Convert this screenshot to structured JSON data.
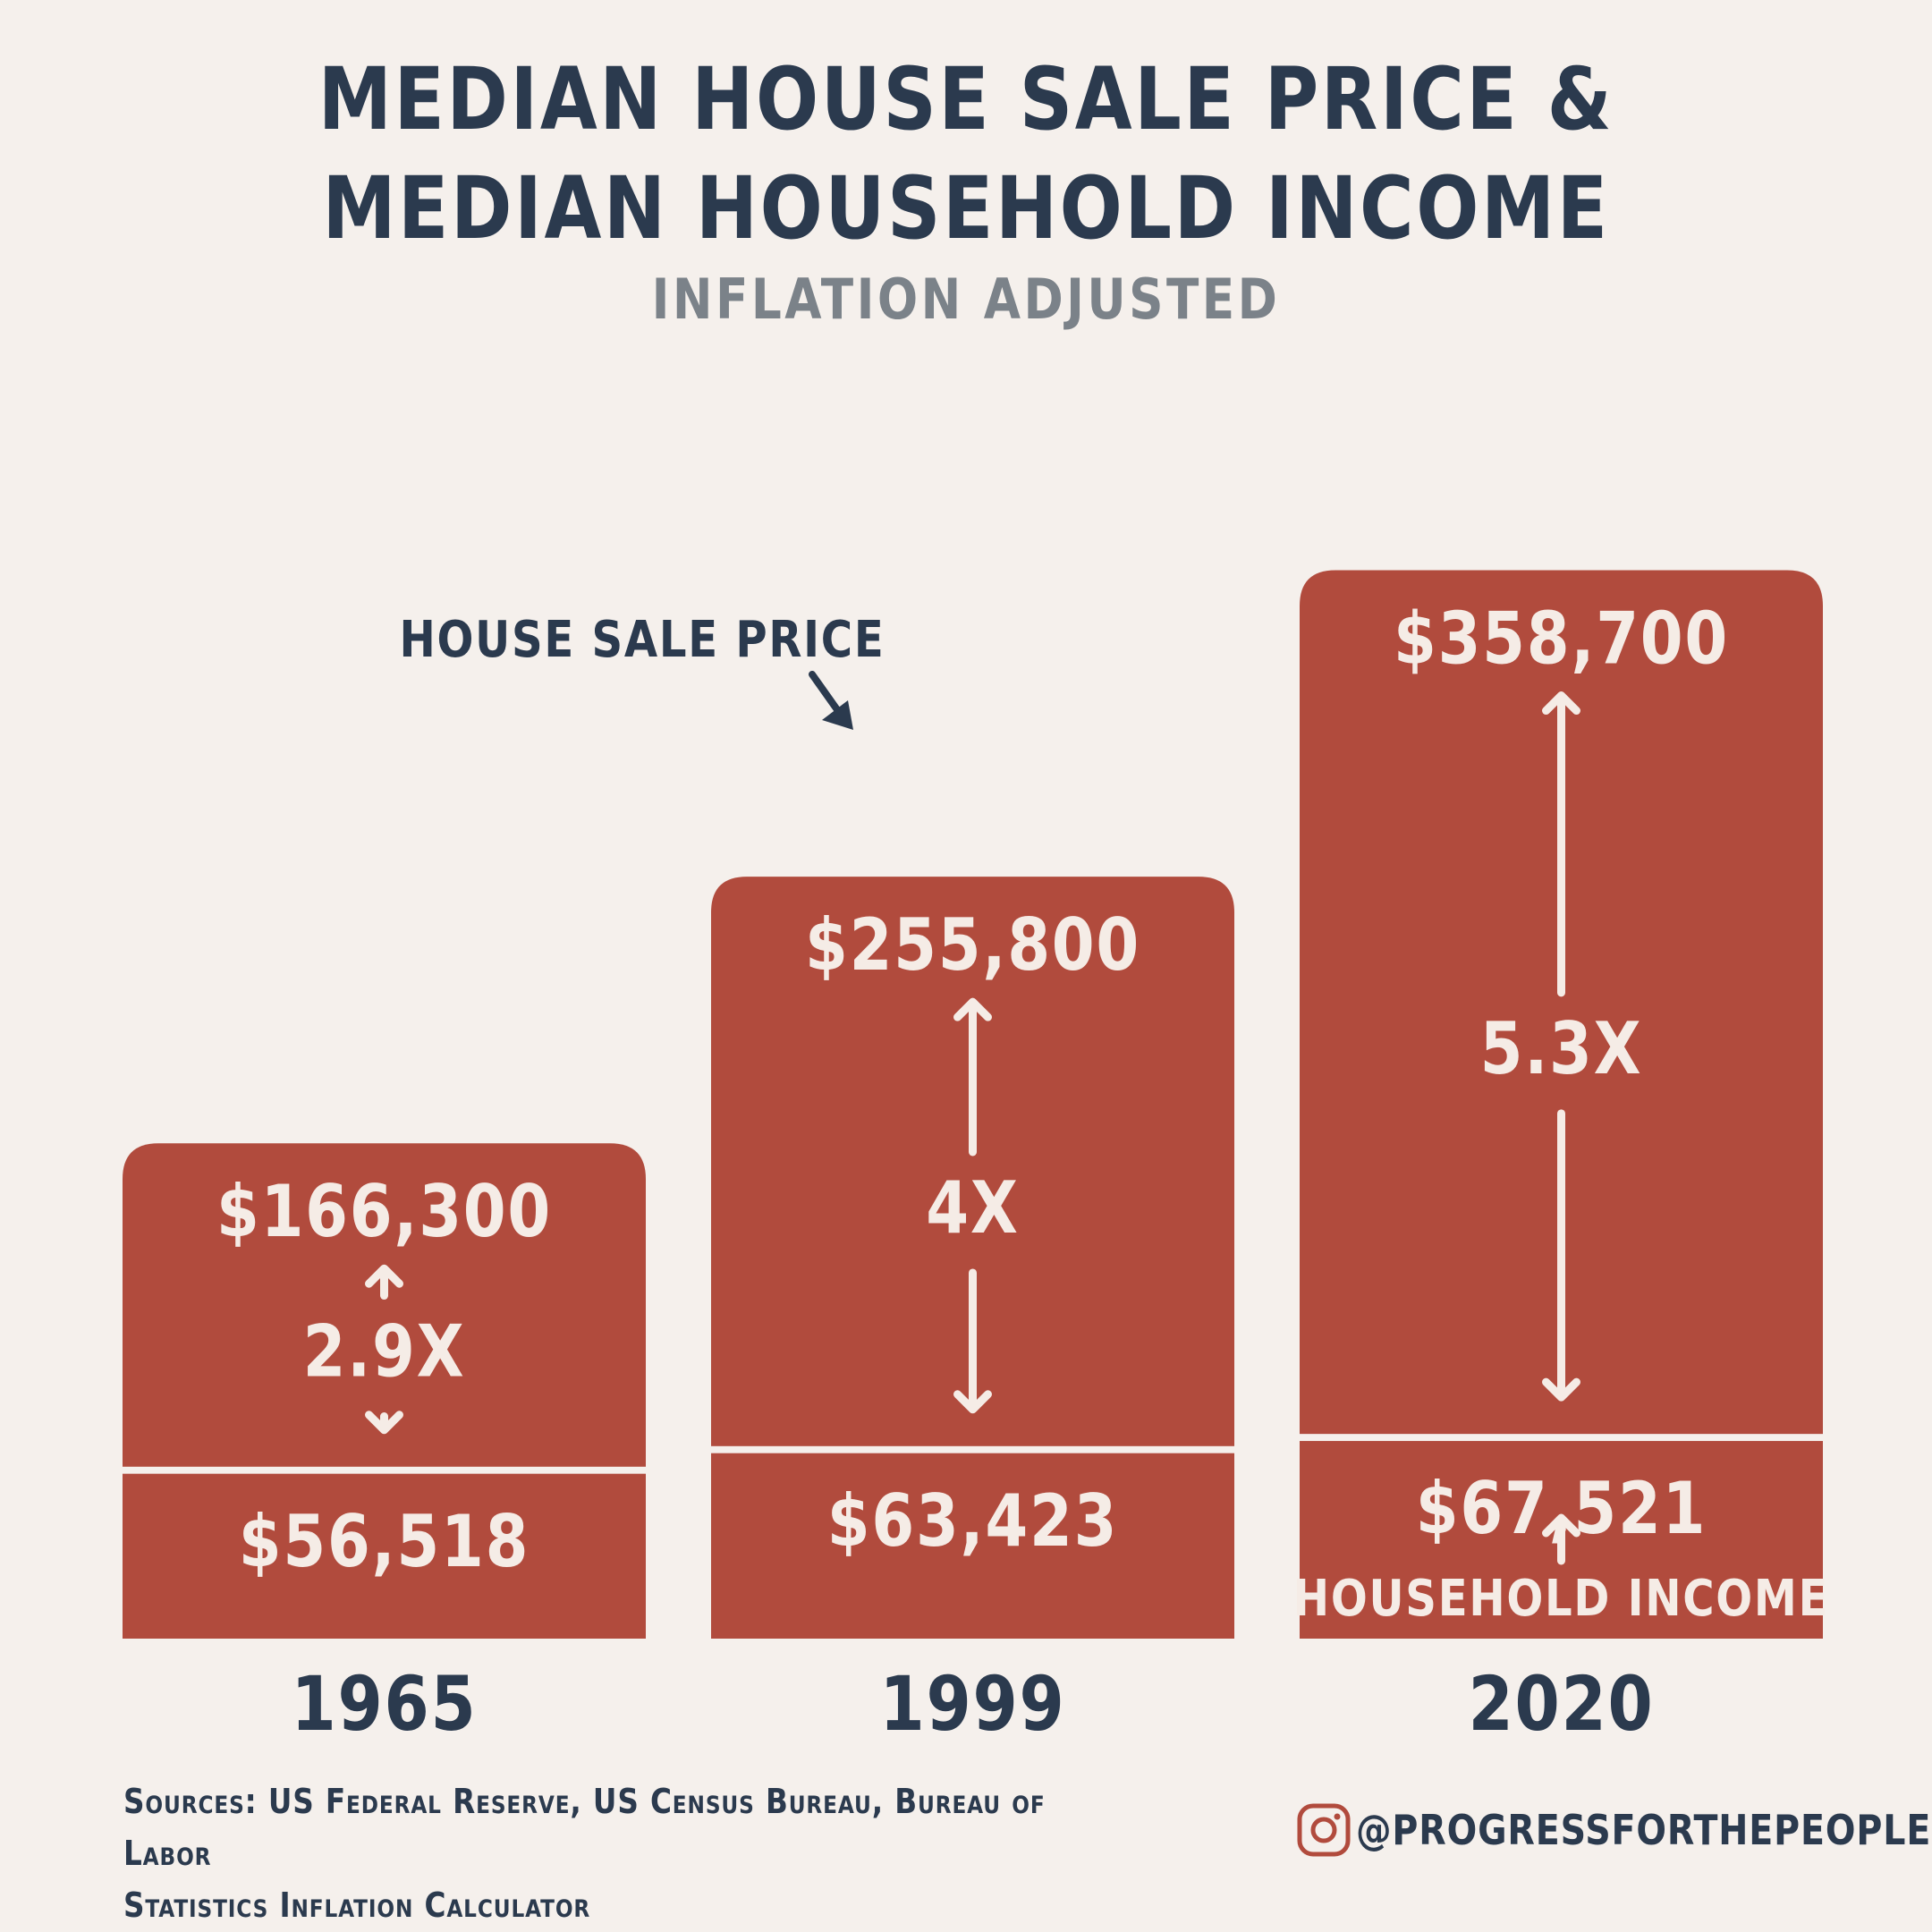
{
  "chart_data": {
    "type": "bar",
    "title": "MEDIAN HOUSE SALE PRICE & MEDIAN HOUSEHOLD INCOME",
    "subtitle": "INFLATION ADJUSTED",
    "categories": [
      "1965",
      "1999",
      "2020"
    ],
    "series": [
      {
        "name": "HOUSE SALE PRICE",
        "values": [
          166300,
          255800,
          358700
        ]
      },
      {
        "name": "HOUSEHOLD INCOME",
        "values": [
          56518,
          63423,
          67521
        ]
      }
    ],
    "value_labels": {
      "house": [
        "$166,300",
        "$255,800",
        "$358,700"
      ],
      "income": [
        "$56,518",
        "$63,423",
        "$67,521"
      ]
    },
    "ratios": [
      "2.9X",
      "4X",
      "5.3X"
    ],
    "annotations": {
      "house_label": "HOUSE SALE PRICE",
      "income_label": "HOUSEHOLD INCOME"
    },
    "colors": {
      "bar": "#b14b3d",
      "text_dark": "#2b3a4e",
      "text_light": "#f5ece6",
      "background": "#f5f0ec"
    }
  },
  "footer": {
    "sources_line1": "Sources: US Federal Reserve, US Census Bureau, Bureau of Labor",
    "sources_line2": "Statistics Inflation Calculator",
    "handle": "@PROGRESSFORTHEPEOPLE",
    "handle_icon": "instagram-icon"
  }
}
